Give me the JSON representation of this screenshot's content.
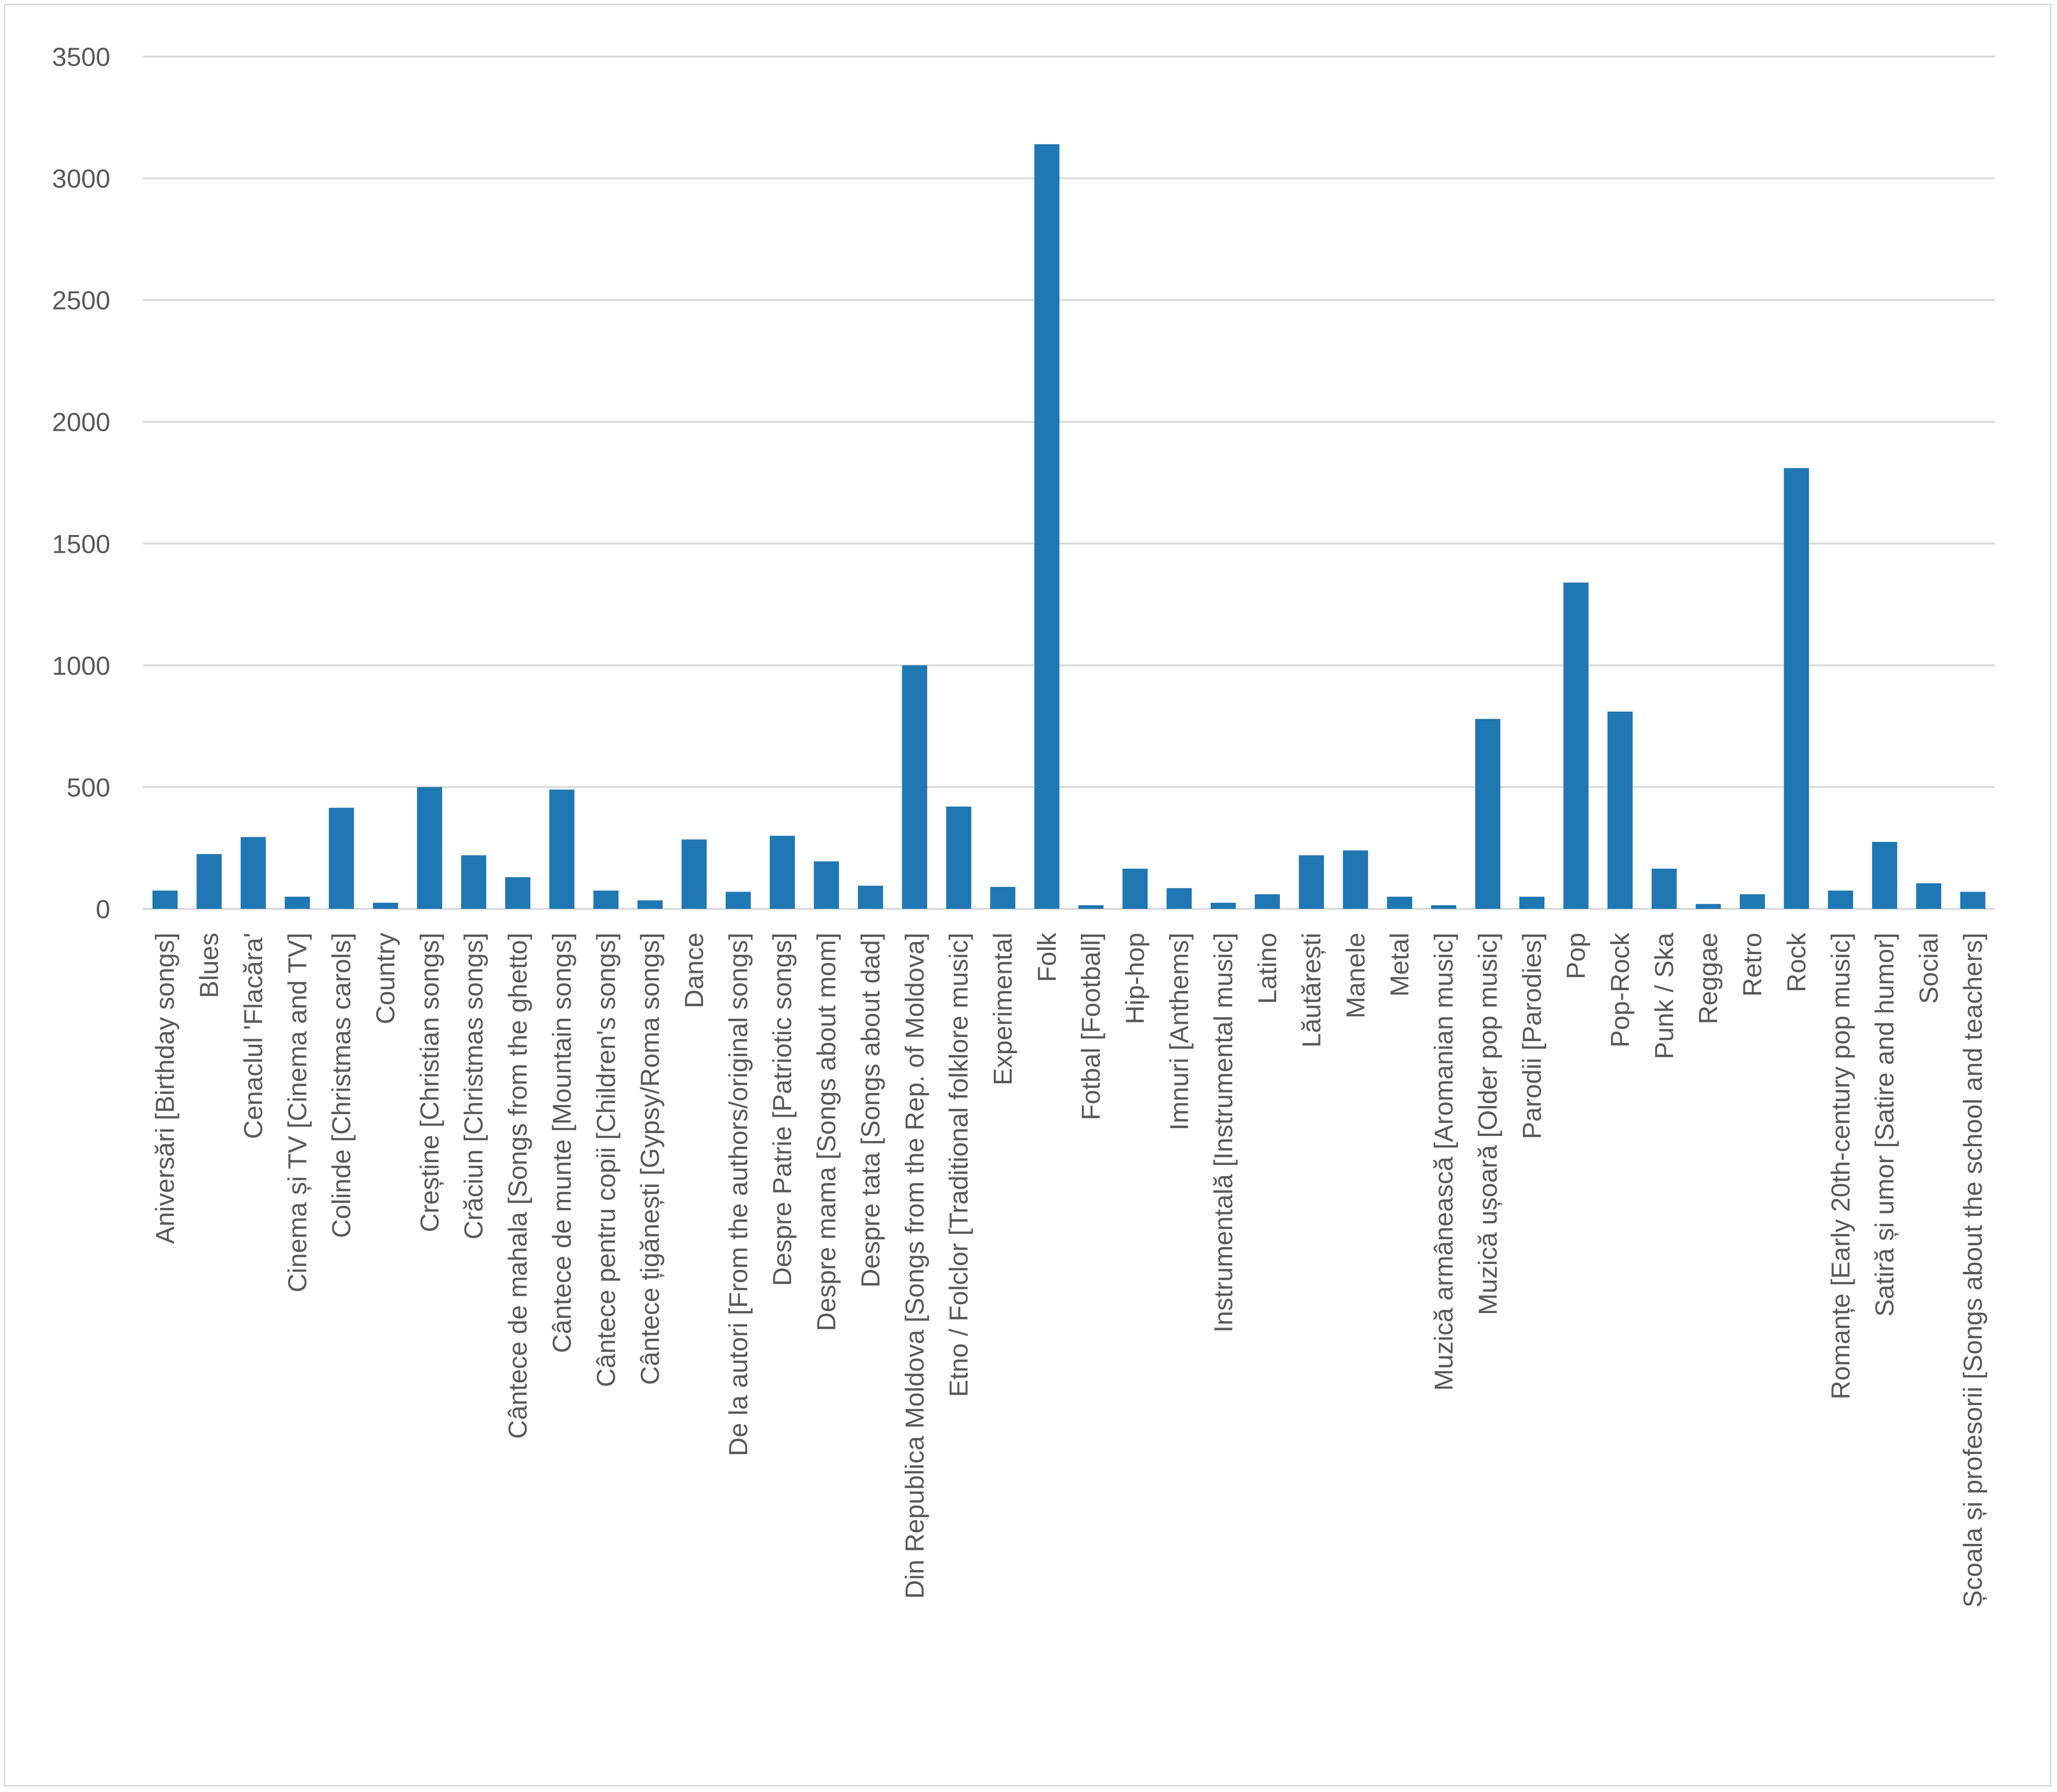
{
  "chart_data": {
    "type": "bar",
    "title": "",
    "xlabel": "",
    "ylabel": "",
    "ylim": [
      0,
      3500
    ],
    "yticks": [
      0,
      500,
      1000,
      1500,
      2000,
      2500,
      3000,
      3500
    ],
    "grid": "horizontal",
    "legend": "none",
    "bar_color": "#1f77b4",
    "categories": [
      "Aniversări [Birthday songs]",
      "Blues",
      "Cenaclul 'Flacăra'",
      "Cinema și TV [Cinema and TV]",
      "Colinde [Christmas carols]",
      "Country",
      "Creștine [Christian songs]",
      "Crăciun [Christmas songs]",
      "Cântece de mahala [Songs from the ghetto]",
      "Cântece de munte [Mountain songs]",
      "Cântece pentru copii [Children's songs]",
      "Cântece țigănești [Gypsy/Roma songs]",
      "Dance",
      "De la autori [From the authors/original songs]",
      "Despre Patrie [Patriotic songs]",
      "Despre mama [Songs about mom]",
      "Despre tata [Songs about dad]",
      "Din Republica Moldova [Songs from the Rep. of Moldova]",
      "Etno / Folclor [Traditional folklore music]",
      "Experimental",
      "Folk",
      "Fotbal [Football]",
      "Hip-hop",
      "Imnuri [Anthems]",
      "Instrumentală [Instrumental music]",
      "Latino",
      "Lăutărești",
      "Manele",
      "Metal",
      "Muzică armânească [Aromanian music]",
      "Muzică ușoară [Older pop music]",
      "Parodii [Parodies]",
      "Pop",
      "Pop-Rock",
      "Punk / Ska",
      "Reggae",
      "Retro",
      "Rock",
      "Romanțe [Early 20th-century pop music]",
      "Satiră și umor [Satire and humor]",
      "Social",
      "Școala și profesorii [Songs about the school and teachers]"
    ],
    "values": [
      75,
      225,
      295,
      50,
      415,
      25,
      500,
      220,
      130,
      490,
      75,
      35,
      285,
      70,
      300,
      195,
      95,
      1000,
      420,
      90,
      3140,
      15,
      165,
      85,
      25,
      60,
      220,
      240,
      50,
      15,
      780,
      50,
      1340,
      810,
      165,
      20,
      60,
      1810,
      75,
      275,
      105,
      70
    ]
  }
}
